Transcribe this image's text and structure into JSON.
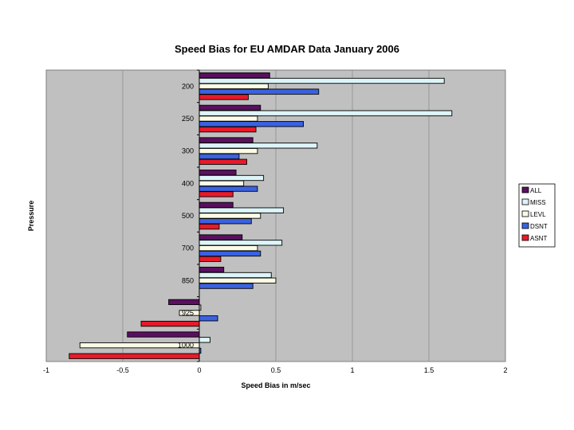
{
  "chart_data": {
    "type": "bar",
    "orientation": "horizontal",
    "title": "Speed Bias for EU AMDAR Data January 2006",
    "xlabel": "Speed Bias in m/sec",
    "ylabel": "Pressure",
    "xlim": [
      -1,
      2
    ],
    "xticks": [
      "-1",
      "-0.5",
      "0",
      "0.5",
      "1",
      "1.5",
      "2"
    ],
    "xtick_values": [
      -1,
      -0.5,
      0,
      0.5,
      1,
      1.5,
      2
    ],
    "categories": [
      "200",
      "250",
      "300",
      "400",
      "500",
      "700",
      "850",
      "925",
      "1000"
    ],
    "grid": true,
    "legend_position": "right",
    "series": [
      {
        "name": "ALL",
        "color": "#5a0f5f",
        "values": [
          0.46,
          0.4,
          0.35,
          0.24,
          0.22,
          0.28,
          0.16,
          -0.2,
          -0.47
        ]
      },
      {
        "name": "MISS",
        "color": "#ddf4f8",
        "values": [
          1.6,
          1.65,
          0.77,
          0.42,
          0.55,
          0.54,
          0.47,
          0.01,
          0.07
        ]
      },
      {
        "name": "LEVL",
        "color": "#fbfbe6",
        "values": [
          0.45,
          0.38,
          0.38,
          0.29,
          0.4,
          0.38,
          0.5,
          -0.13,
          -0.78
        ]
      },
      {
        "name": "DSNT",
        "color": "#3a62e0",
        "values": [
          0.78,
          0.68,
          0.26,
          0.38,
          0.34,
          0.4,
          0.35,
          0.12,
          0.01
        ]
      },
      {
        "name": "ASNT",
        "color": "#e81a2a",
        "values": [
          0.32,
          0.37,
          0.31,
          0.22,
          0.13,
          0.14,
          null,
          -0.38,
          -0.85
        ]
      }
    ]
  }
}
